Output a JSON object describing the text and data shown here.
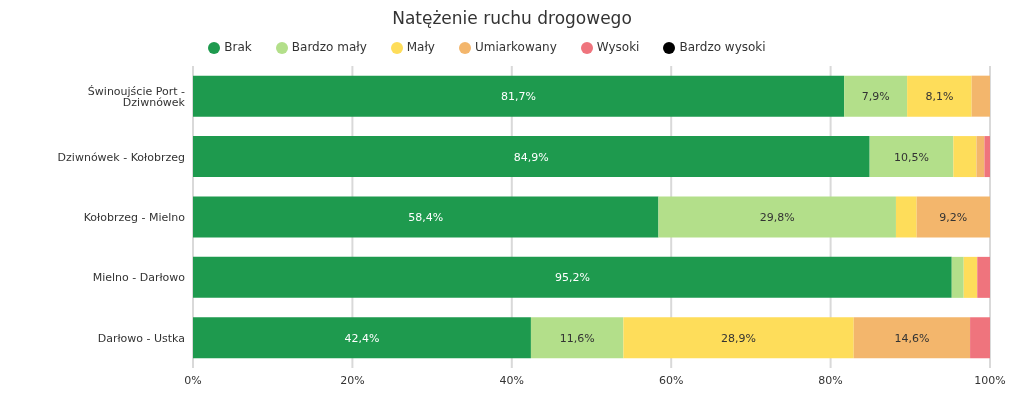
{
  "chart_data": {
    "type": "bar",
    "orientation": "horizontal",
    "stacked": true,
    "title": "Natężenie ruchu drogowego",
    "categories": [
      "Świnoujście Port - Dziwnówek",
      "Dziwnówek - Kołobrzeg",
      "Kołobrzeg - Mielno",
      "Mielno - Darłowo",
      "Darłowo - Ustka"
    ],
    "series": [
      {
        "name": "Brak",
        "color": "#1e9a4e",
        "values": [
          81.7,
          84.9,
          58.4,
          95.2,
          42.4
        ],
        "value_labels": [
          "81,7%",
          "84,9%",
          "58,4%",
          "95,2%",
          "42,4%"
        ]
      },
      {
        "name": "Bardzo mały",
        "color": "#b3df8a",
        "values": [
          7.9,
          10.5,
          29.8,
          1.5,
          11.6
        ],
        "value_labels": [
          "7,9%",
          "10,5%",
          "29,8%",
          null,
          "11,6%"
        ]
      },
      {
        "name": "Mały",
        "color": "#fedd5a",
        "values": [
          8.1,
          2.9,
          2.6,
          1.7,
          28.9
        ],
        "value_labels": [
          "8,1%",
          null,
          null,
          null,
          "28,9%"
        ]
      },
      {
        "name": "Umiarkowany",
        "color": "#f3b66c",
        "values": [
          2.3,
          1.0,
          9.2,
          0,
          14.6
        ],
        "value_labels": [
          null,
          null,
          "9,2%",
          null,
          "14,6%"
        ]
      },
      {
        "name": "Wysoki",
        "color": "#ef747d",
        "values": [
          0,
          0.7,
          0,
          1.6,
          2.5
        ],
        "value_labels": [
          null,
          null,
          null,
          null,
          null
        ]
      },
      {
        "name": "Bardzo wysoki",
        "color": "#000000",
        "values": [
          0,
          0,
          0,
          0,
          0
        ],
        "value_labels": [
          null,
          null,
          null,
          null,
          null
        ]
      }
    ],
    "xlim": [
      0,
      100
    ],
    "xticks": [
      {
        "value": 0,
        "label": "0%"
      },
      {
        "value": 20,
        "label": "20%"
      },
      {
        "value": 40,
        "label": "40%"
      },
      {
        "value": 60,
        "label": "60%"
      },
      {
        "value": 80,
        "label": "80%"
      },
      {
        "value": 100,
        "label": "100%"
      }
    ],
    "grid": "x",
    "legend": "top"
  }
}
